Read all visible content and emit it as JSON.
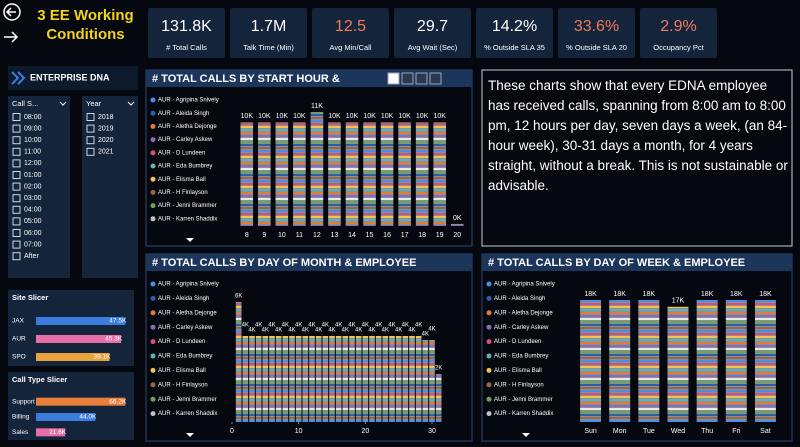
{
  "header": {
    "title": "3 EE Working Conditions",
    "logo": "ENTERPRISE DNA"
  },
  "kpis": [
    {
      "value": "131.8K",
      "label": "# Total Calls",
      "color": "#ffffff"
    },
    {
      "value": "1.7M",
      "label": "Talk Time (Min)",
      "color": "#ffffff"
    },
    {
      "value": "12.5",
      "label": "Avg Min/Call",
      "color": "#f07b5a"
    },
    {
      "value": "29.7",
      "label": "Avg Wait (Sec)",
      "color": "#ffffff"
    },
    {
      "value": "14.2%",
      "label": "% Outside SLA 35",
      "color": "#ffffff"
    },
    {
      "value": "33.6%",
      "label": "% Outside SLA 20",
      "color": "#f07b5a"
    },
    {
      "value": "2.9%",
      "label": "Occupancy Pct",
      "color": "#f07b5a"
    }
  ],
  "slicers": {
    "call": {
      "title": "Call S...",
      "items": [
        "08:00",
        "09:00",
        "10:00",
        "11:00",
        "12:00",
        "01:00",
        "02:00",
        "03:00",
        "04:00",
        "05:00",
        "06:00",
        "07:00",
        "After"
      ]
    },
    "year": {
      "title": "Year",
      "items": [
        "2018",
        "2019",
        "2020",
        "2021"
      ]
    }
  },
  "note": "These charts show that every EDNA employee has received calls, spanning from 8:00 am to 8:00 pm, 12 hours per day, seven days a week, (an 84-hour week),  30-31 days a month, for 4 years straight, without a break. This is not sustainable or advisable.",
  "legend": [
    {
      "name": "AUR - Agripina Snively",
      "color": "#4a90e2"
    },
    {
      "name": "AUR - Aleida Singh",
      "color": "#2c5fa8"
    },
    {
      "name": "AUR - Aletha Dejonge",
      "color": "#e07b39"
    },
    {
      "name": "AUR - Carley Askew",
      "color": "#8e6bb5"
    },
    {
      "name": "AUR - D Lundeen",
      "color": "#d94f70"
    },
    {
      "name": "AUR - Eda Bumbrey",
      "color": "#5fb3b3"
    },
    {
      "name": "AUR - Elisma Ball",
      "color": "#f2c14e"
    },
    {
      "name": "AUR - H Finlayson",
      "color": "#9c6644"
    },
    {
      "name": "AUR - Jenni Brammer",
      "color": "#6aa84f"
    },
    {
      "name": "AUR - Karren Shaddix",
      "color": "#c0c0c0"
    }
  ],
  "chart_data": [
    {
      "type": "bar",
      "title": "# TOTAL CALLS BY START HOUR &",
      "categories": [
        "8",
        "9",
        "10",
        "11",
        "12",
        "13",
        "14",
        "15",
        "16",
        "17",
        "18",
        "19",
        "20"
      ],
      "values": [
        10000,
        10000,
        10000,
        10000,
        11000,
        10000,
        10000,
        10000,
        10000,
        10000,
        10000,
        10000,
        200
      ],
      "value_labels": [
        "10K",
        "10K",
        "10K",
        "10K",
        "11K",
        "10K",
        "10K",
        "10K",
        "10K",
        "10K",
        "10K",
        "10K",
        "0K"
      ]
    },
    {
      "type": "bar",
      "title": "# TOTAL CALLS BY DAY OF MONTH & EMPLOYEE",
      "x": [
        1,
        2,
        3,
        4,
        5,
        6,
        7,
        8,
        9,
        10,
        11,
        12,
        13,
        14,
        15,
        16,
        17,
        18,
        19,
        20,
        21,
        22,
        23,
        24,
        25,
        26,
        27,
        28,
        29,
        30,
        31
      ],
      "values": [
        6000,
        4300,
        4300,
        4300,
        4300,
        4300,
        4300,
        4300,
        4300,
        4300,
        4300,
        4300,
        4300,
        4300,
        4300,
        4300,
        4300,
        4300,
        4300,
        4300,
        4300,
        4300,
        4300,
        4300,
        4300,
        4300,
        4300,
        4300,
        4100,
        4100,
        2400
      ],
      "value_labels": [
        "6K",
        "4K",
        "4K",
        "4K",
        "4K",
        "4K",
        "4K",
        "4K",
        "4K",
        "4K",
        "4K",
        "4K",
        "4K",
        "4K",
        "4K",
        "4K",
        "4K",
        "4K",
        "4K",
        "4K",
        "4K",
        "4K",
        "4K",
        "4K",
        "4K",
        "4K",
        "4K",
        "4K",
        "4K",
        "4K",
        "2K"
      ],
      "xlim": [
        0,
        31.5
      ],
      "xticks": [
        0,
        10,
        20,
        30
      ]
    },
    {
      "type": "bar",
      "title": "# TOTAL CALLS BY DAY OF WEEK & EMPLOYEE",
      "categories": [
        "Sun",
        "Mon",
        "Tue",
        "Wed",
        "Thu",
        "Fri",
        "Sat"
      ],
      "values": [
        18000,
        18000,
        18000,
        17000,
        18000,
        18000,
        18000
      ],
      "value_labels": [
        "18K",
        "18K",
        "18K",
        "17K",
        "18K",
        "18K",
        "18K"
      ]
    },
    {
      "type": "bar",
      "orientation": "horizontal",
      "title": "Site Slicer",
      "categories": [
        "JAX",
        "AUR",
        "SPO"
      ],
      "values": [
        47500,
        45300,
        39100
      ],
      "value_labels": [
        "47.5K",
        "45.3K",
        "39.1K"
      ],
      "colors": [
        "#3b7ddd",
        "#e66fa8",
        "#e8a33c"
      ]
    },
    {
      "type": "bar",
      "orientation": "horizontal",
      "title": "Call Type Slicer",
      "categories": [
        "Support",
        "Billing",
        "Sales"
      ],
      "values": [
        66200,
        44000,
        21600
      ],
      "value_labels": [
        "66.2K",
        "44.0K",
        "21.6K"
      ],
      "colors": [
        "#e8803c",
        "#3b7ddd",
        "#e66fa8"
      ]
    }
  ]
}
